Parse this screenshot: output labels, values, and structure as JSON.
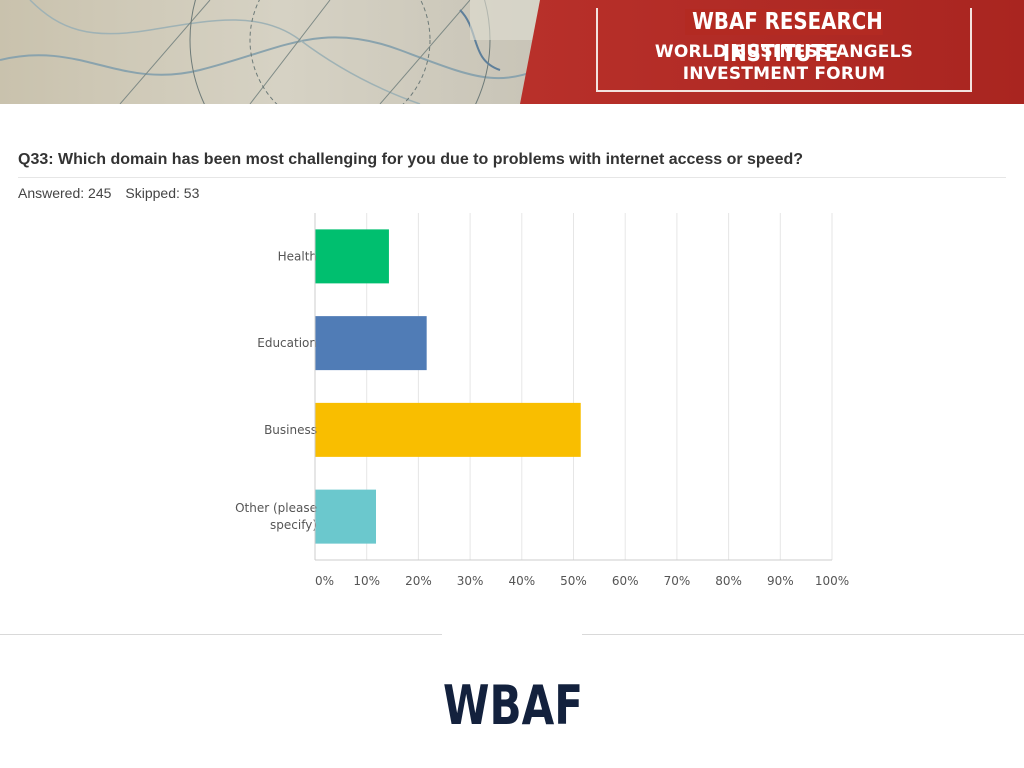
{
  "banner": {
    "title": "WBAF RESEARCH INSTITUTE",
    "subtitle_line1": "WORLD BUSINESS ANGELS",
    "subtitle_line2": "INVESTMENT FORUM",
    "accent_color": "#b32a22"
  },
  "question": {
    "text": "Q33: Which domain has been most challenging for you due to problems with internet access or speed?",
    "answered": "Answered: 245",
    "skipped": "Skipped: 53"
  },
  "chart_data": {
    "type": "bar",
    "orientation": "horizontal",
    "categories": [
      "Health",
      "Education",
      "Business",
      "Other (please specify)"
    ],
    "category_lines": [
      [
        "Health"
      ],
      [
        "Education"
      ],
      [
        "Business"
      ],
      [
        "Other (please",
        "specify)"
      ]
    ],
    "values": [
      14.3,
      21.6,
      51.4,
      11.8
    ],
    "colors": [
      "#00bf6f",
      "#507cb6",
      "#f9be00",
      "#6bc8cd"
    ],
    "xlim": [
      0,
      100
    ],
    "ticks": [
      "0%",
      "10%",
      "20%",
      "30%",
      "40%",
      "50%",
      "60%",
      "70%",
      "80%",
      "90%",
      "100%"
    ],
    "grid": true,
    "title": "",
    "xlabel": "",
    "ylabel": ""
  },
  "footer": {
    "logo_text": "WBAF",
    "logo_color": "#13213d"
  }
}
